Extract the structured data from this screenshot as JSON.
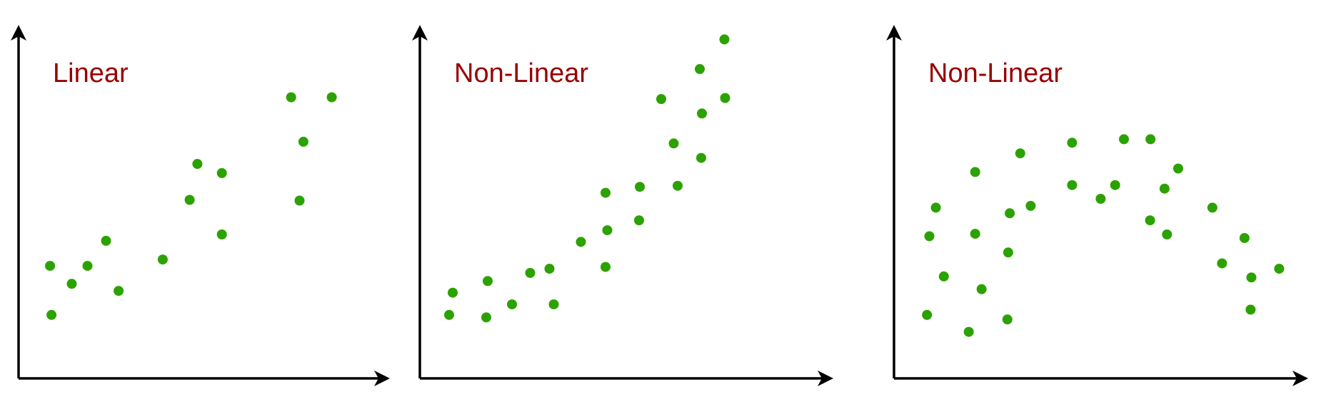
{
  "colors": {
    "title": "#990000",
    "point": "#2ca200",
    "axis": "#000000",
    "background": "#ffffff"
  },
  "chart_data": [
    {
      "type": "scatter",
      "title": "Linear",
      "xlabel": "",
      "ylabel": "",
      "grid": false,
      "xlim": [
        0,
        100
      ],
      "ylim": [
        0,
        100
      ],
      "points": [
        {
          "x": 9.0,
          "y": 31.9
        },
        {
          "x": 9.4,
          "y": 18.0
        },
        {
          "x": 15.2,
          "y": 26.8
        },
        {
          "x": 19.7,
          "y": 31.9
        },
        {
          "x": 25.0,
          "y": 39.0
        },
        {
          "x": 28.6,
          "y": 24.8
        },
        {
          "x": 41.2,
          "y": 33.7
        },
        {
          "x": 48.9,
          "y": 50.6
        },
        {
          "x": 51.1,
          "y": 60.8
        },
        {
          "x": 58.1,
          "y": 40.8
        },
        {
          "x": 58.1,
          "y": 58.2
        },
        {
          "x": 80.3,
          "y": 50.4
        },
        {
          "x": 81.4,
          "y": 67.1
        },
        {
          "x": 77.9,
          "y": 79.7
        },
        {
          "x": 89.5,
          "y": 79.7
        }
      ]
    },
    {
      "type": "scatter",
      "title": "Non-Linear",
      "xlabel": "",
      "ylabel": "",
      "grid": false,
      "xlim": [
        0,
        100
      ],
      "ylim": [
        0,
        100
      ],
      "points": [
        {
          "x": 8.2,
          "y": 18.0
        },
        {
          "x": 9.2,
          "y": 24.3
        },
        {
          "x": 18.6,
          "y": 17.3
        },
        {
          "x": 19.0,
          "y": 27.6
        },
        {
          "x": 25.8,
          "y": 21.0
        },
        {
          "x": 30.9,
          "y": 29.9
        },
        {
          "x": 36.3,
          "y": 31.1
        },
        {
          "x": 37.5,
          "y": 21.0
        },
        {
          "x": 45.1,
          "y": 38.7
        },
        {
          "x": 52.0,
          "y": 31.6
        },
        {
          "x": 52.0,
          "y": 52.6
        },
        {
          "x": 52.5,
          "y": 42.0
        },
        {
          "x": 61.4,
          "y": 44.8
        },
        {
          "x": 61.6,
          "y": 54.3
        },
        {
          "x": 67.6,
          "y": 79.2
        },
        {
          "x": 71.1,
          "y": 66.6
        },
        {
          "x": 72.2,
          "y": 54.6
        },
        {
          "x": 78.8,
          "y": 62.5
        },
        {
          "x": 79.0,
          "y": 75.1
        },
        {
          "x": 78.4,
          "y": 87.7
        },
        {
          "x": 85.3,
          "y": 96.1
        },
        {
          "x": 85.5,
          "y": 79.5
        }
      ]
    },
    {
      "type": "scatter",
      "title": "Non-Linear",
      "xlabel": "",
      "ylabel": "",
      "grid": false,
      "xlim": [
        0,
        100
      ],
      "ylim": [
        0,
        100
      ],
      "points": [
        {
          "x": 8.2,
          "y": 18.0
        },
        {
          "x": 8.8,
          "y": 40.3
        },
        {
          "x": 10.4,
          "y": 48.4
        },
        {
          "x": 12.4,
          "y": 28.9
        },
        {
          "x": 18.6,
          "y": 13.2
        },
        {
          "x": 20.2,
          "y": 58.5
        },
        {
          "x": 20.2,
          "y": 41.0
        },
        {
          "x": 21.8,
          "y": 25.3
        },
        {
          "x": 28.2,
          "y": 16.7
        },
        {
          "x": 28.4,
          "y": 35.7
        },
        {
          "x": 28.8,
          "y": 46.8
        },
        {
          "x": 31.4,
          "y": 63.8
        },
        {
          "x": 34.0,
          "y": 48.9
        },
        {
          "x": 44.3,
          "y": 66.8
        },
        {
          "x": 44.3,
          "y": 54.8
        },
        {
          "x": 51.4,
          "y": 50.9
        },
        {
          "x": 55.0,
          "y": 54.8
        },
        {
          "x": 57.2,
          "y": 67.8
        },
        {
          "x": 63.8,
          "y": 67.8
        },
        {
          "x": 63.7,
          "y": 44.8
        },
        {
          "x": 67.3,
          "y": 53.8
        },
        {
          "x": 70.7,
          "y": 59.5
        },
        {
          "x": 67.9,
          "y": 40.8
        },
        {
          "x": 79.2,
          "y": 48.4
        },
        {
          "x": 81.6,
          "y": 32.6
        },
        {
          "x": 87.2,
          "y": 39.8
        },
        {
          "x": 88.9,
          "y": 28.6
        },
        {
          "x": 88.7,
          "y": 19.5
        },
        {
          "x": 95.8,
          "y": 31.1
        }
      ]
    }
  ]
}
